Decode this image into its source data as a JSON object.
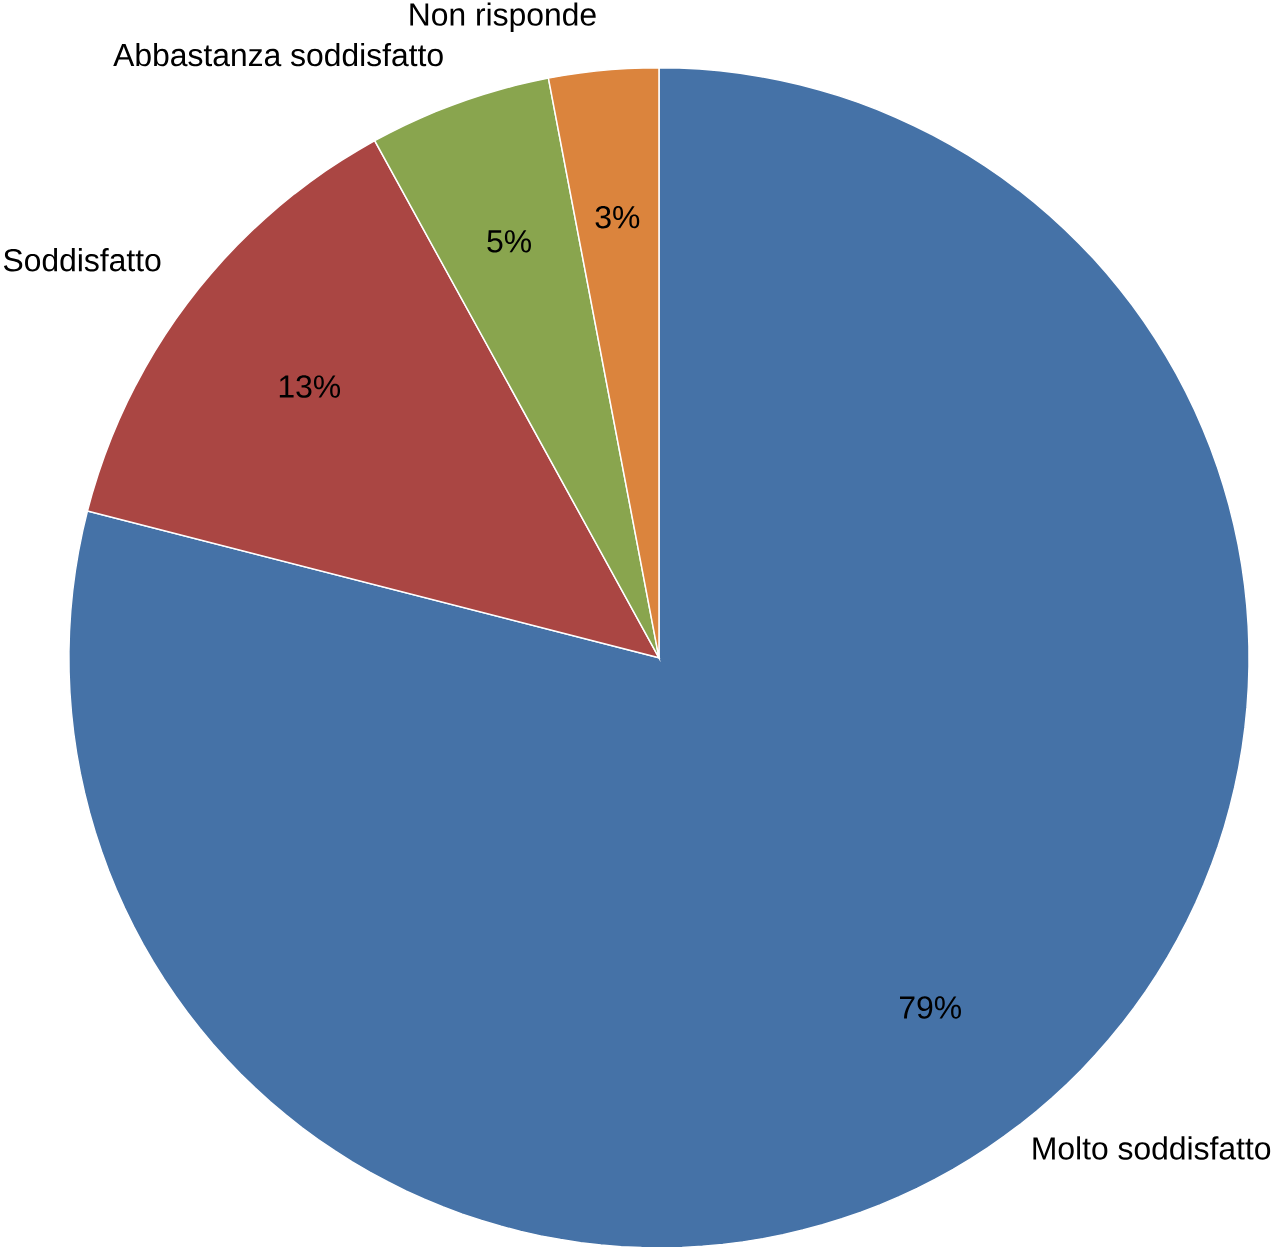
{
  "chart_data": {
    "type": "pie",
    "categories": [
      "Molto soddisfatto",
      "Soddisfatto",
      "Abbastanza soddisfatto",
      "Non risponde"
    ],
    "values": [
      79,
      13,
      5,
      3
    ],
    "value_labels": [
      "79%",
      "13%",
      "5%",
      "3%"
    ],
    "colors": [
      "#4572a7",
      "#aa4643",
      "#89a54e",
      "#db843d"
    ]
  }
}
